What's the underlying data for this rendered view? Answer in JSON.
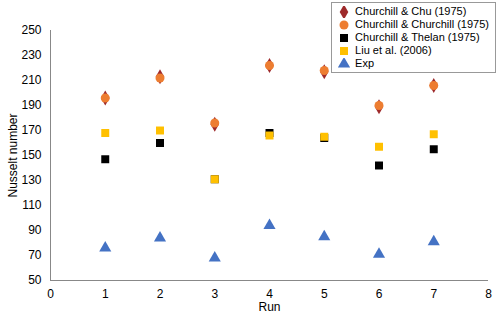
{
  "chart_data": {
    "type": "scatter",
    "x_label": "Run",
    "y_label": "Nusselt number",
    "x": [
      1,
      2,
      3,
      4,
      5,
      6,
      7
    ],
    "series": [
      {
        "name": "Churchill & Chu (1975)",
        "color": "#9e2a2b",
        "marker": "diamond",
        "values": [
          196,
          213,
          175,
          222,
          217,
          189,
          206
        ]
      },
      {
        "name": "Churchill & Churchill (1975)",
        "color": "#ed7d31",
        "marker": "circle",
        "values": [
          196,
          212,
          176,
          222,
          218,
          190,
          206
        ]
      },
      {
        "name": "Churchill & Thelan (1975)",
        "color": "#000000",
        "marker": "square",
        "values": [
          147,
          160,
          131,
          168,
          164,
          142,
          155
        ]
      },
      {
        "name": "Liu et al. (2006)",
        "color": "#ffc000",
        "marker": "square",
        "values": [
          168,
          170,
          131,
          166,
          165,
          157,
          167
        ]
      },
      {
        "name": "Exp",
        "color": "#4472c4",
        "marker": "triangle",
        "values": [
          76,
          84,
          68,
          94,
          85,
          71,
          81
        ]
      }
    ],
    "xlim": [
      0,
      8
    ],
    "xticks": [
      0,
      1,
      2,
      3,
      4,
      5,
      6,
      7,
      8
    ],
    "ylim": [
      50,
      250
    ],
    "yticks": [
      50,
      70,
      90,
      110,
      130,
      150,
      170,
      190,
      210,
      230,
      250
    ],
    "grid": false,
    "legend": "top-right"
  }
}
